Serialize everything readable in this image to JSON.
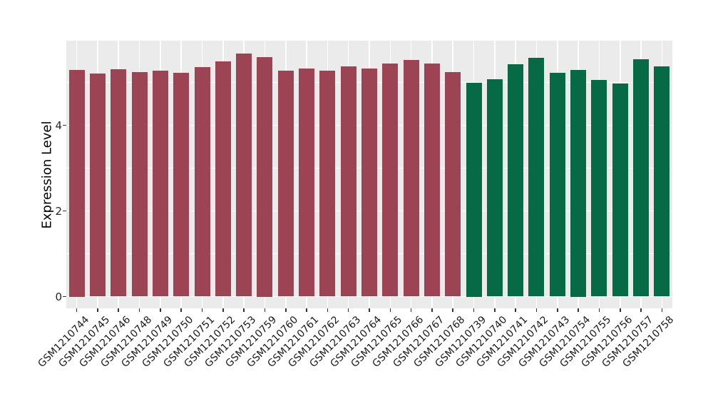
{
  "chart_data": {
    "type": "bar",
    "title": "",
    "xlabel": "",
    "ylabel": "Expression Level",
    "ylim": [
      0,
      5.97
    ],
    "yticks": [
      0,
      2,
      4
    ],
    "yticks_minor": [
      1,
      3,
      5
    ],
    "grid": true,
    "legend": false,
    "panel_bg": "#EBEBEB",
    "grid_color": "#FFFFFF",
    "tick_color": "#333333",
    "categories": [
      "GSM1210744",
      "GSM1210745",
      "GSM1210746",
      "GSM1210748",
      "GSM1210749",
      "GSM1210750",
      "GSM1210751",
      "GSM1210752",
      "GSM1210753",
      "GSM1210759",
      "GSM1210760",
      "GSM1210761",
      "GSM1210762",
      "GSM1210763",
      "GSM1210764",
      "GSM1210765",
      "GSM1210766",
      "GSM1210767",
      "GSM1210768",
      "GSM1210739",
      "GSM1210740",
      "GSM1210741",
      "GSM1210742",
      "GSM1210743",
      "GSM1210754",
      "GSM1210755",
      "GSM1210756",
      "GSM1210757",
      "GSM1210758"
    ],
    "values": [
      5.3,
      5.21,
      5.31,
      5.24,
      5.27,
      5.22,
      5.36,
      5.49,
      5.68,
      5.6,
      5.27,
      5.33,
      5.27,
      5.38,
      5.33,
      5.44,
      5.52,
      5.44,
      5.24,
      5.0,
      5.08,
      5.42,
      5.57,
      5.22,
      5.3,
      5.06,
      4.98,
      5.54,
      5.38
    ],
    "groups": [
      "maroon",
      "maroon",
      "maroon",
      "maroon",
      "maroon",
      "maroon",
      "maroon",
      "maroon",
      "maroon",
      "maroon",
      "maroon",
      "maroon",
      "maroon",
      "maroon",
      "maroon",
      "maroon",
      "maroon",
      "maroon",
      "maroon",
      "green",
      "green",
      "green",
      "green",
      "green",
      "green",
      "green",
      "green",
      "green",
      "green"
    ],
    "group_colors": {
      "maroon": "#9C4453",
      "green": "#066A47"
    }
  }
}
